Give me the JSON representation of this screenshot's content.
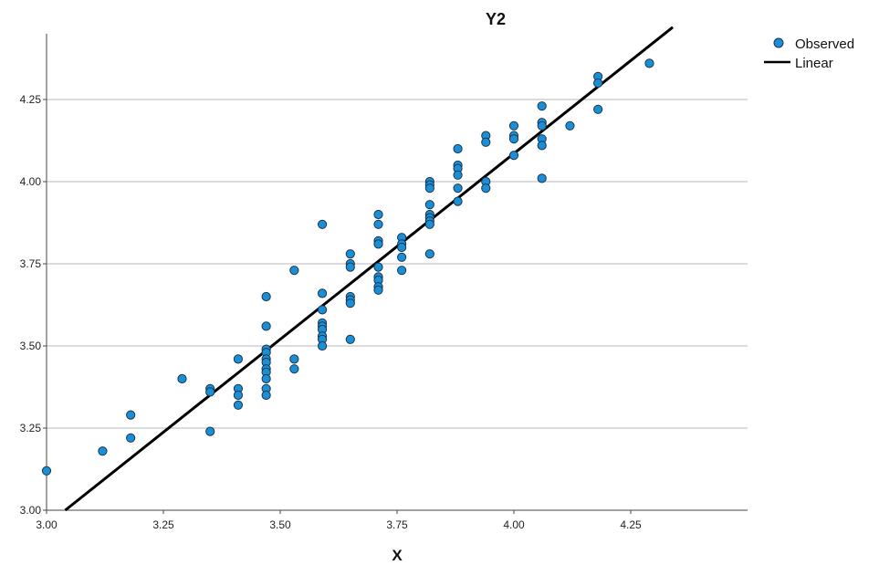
{
  "chart_data": {
    "type": "scatter",
    "title": "Y2",
    "xlabel": "X",
    "ylabel": "",
    "xlim": [
      3.0,
      4.5
    ],
    "ylim": [
      3.0,
      4.45
    ],
    "xticks": [
      "3.00",
      "3.25",
      "3.50",
      "3.75",
      "4.00",
      "4.25"
    ],
    "yticks": [
      "3.00",
      "3.25",
      "3.50",
      "3.75",
      "4.00",
      "4.25"
    ],
    "grid": "horizontal",
    "legend_position": "top-right",
    "series": [
      {
        "name": "Observed",
        "color": "#1a8fd6",
        "points": [
          [
            3.0,
            3.12
          ],
          [
            3.12,
            3.18
          ],
          [
            3.18,
            3.29
          ],
          [
            3.18,
            3.22
          ],
          [
            3.29,
            3.4
          ],
          [
            3.35,
            3.37
          ],
          [
            3.35,
            3.36
          ],
          [
            3.35,
            3.24
          ],
          [
            3.41,
            3.46
          ],
          [
            3.41,
            3.37
          ],
          [
            3.41,
            3.35
          ],
          [
            3.41,
            3.32
          ],
          [
            3.47,
            3.65
          ],
          [
            3.47,
            3.56
          ],
          [
            3.47,
            3.49
          ],
          [
            3.47,
            3.48
          ],
          [
            3.47,
            3.46
          ],
          [
            3.47,
            3.45
          ],
          [
            3.47,
            3.43
          ],
          [
            3.47,
            3.42
          ],
          [
            3.47,
            3.4
          ],
          [
            3.47,
            3.37
          ],
          [
            3.47,
            3.35
          ],
          [
            3.53,
            3.73
          ],
          [
            3.53,
            3.46
          ],
          [
            3.53,
            3.43
          ],
          [
            3.59,
            3.87
          ],
          [
            3.59,
            3.66
          ],
          [
            3.59,
            3.61
          ],
          [
            3.59,
            3.57
          ],
          [
            3.59,
            3.56
          ],
          [
            3.59,
            3.55
          ],
          [
            3.59,
            3.53
          ],
          [
            3.59,
            3.52
          ],
          [
            3.59,
            3.5
          ],
          [
            3.65,
            3.78
          ],
          [
            3.65,
            3.75
          ],
          [
            3.65,
            3.74
          ],
          [
            3.65,
            3.65
          ],
          [
            3.65,
            3.64
          ],
          [
            3.65,
            3.63
          ],
          [
            3.65,
            3.52
          ],
          [
            3.71,
            3.9
          ],
          [
            3.71,
            3.87
          ],
          [
            3.71,
            3.82
          ],
          [
            3.71,
            3.81
          ],
          [
            3.71,
            3.74
          ],
          [
            3.71,
            3.71
          ],
          [
            3.71,
            3.7
          ],
          [
            3.71,
            3.68
          ],
          [
            3.71,
            3.67
          ],
          [
            3.76,
            3.83
          ],
          [
            3.76,
            3.81
          ],
          [
            3.76,
            3.8
          ],
          [
            3.76,
            3.77
          ],
          [
            3.76,
            3.73
          ],
          [
            3.82,
            4.0
          ],
          [
            3.82,
            3.99
          ],
          [
            3.82,
            3.98
          ],
          [
            3.82,
            3.93
          ],
          [
            3.82,
            3.9
          ],
          [
            3.82,
            3.89
          ],
          [
            3.82,
            3.88
          ],
          [
            3.82,
            3.87
          ],
          [
            3.82,
            3.78
          ],
          [
            3.88,
            4.1
          ],
          [
            3.88,
            4.05
          ],
          [
            3.88,
            4.04
          ],
          [
            3.88,
            4.02
          ],
          [
            3.88,
            3.98
          ],
          [
            3.88,
            3.94
          ],
          [
            3.94,
            4.14
          ],
          [
            3.94,
            4.12
          ],
          [
            3.94,
            4.0
          ],
          [
            3.94,
            3.98
          ],
          [
            4.0,
            4.17
          ],
          [
            4.0,
            4.14
          ],
          [
            4.0,
            4.13
          ],
          [
            4.0,
            4.08
          ],
          [
            4.06,
            4.23
          ],
          [
            4.06,
            4.18
          ],
          [
            4.06,
            4.17
          ],
          [
            4.06,
            4.13
          ],
          [
            4.06,
            4.11
          ],
          [
            4.06,
            4.01
          ],
          [
            4.12,
            4.17
          ],
          [
            4.18,
            4.32
          ],
          [
            4.18,
            4.3
          ],
          [
            4.18,
            4.22
          ],
          [
            4.29,
            4.36
          ]
        ]
      },
      {
        "name": "Linear",
        "type": "line",
        "color": "#000000",
        "x": [
          3.04,
          4.34
        ],
        "y": [
          3.0,
          4.47
        ]
      }
    ]
  }
}
